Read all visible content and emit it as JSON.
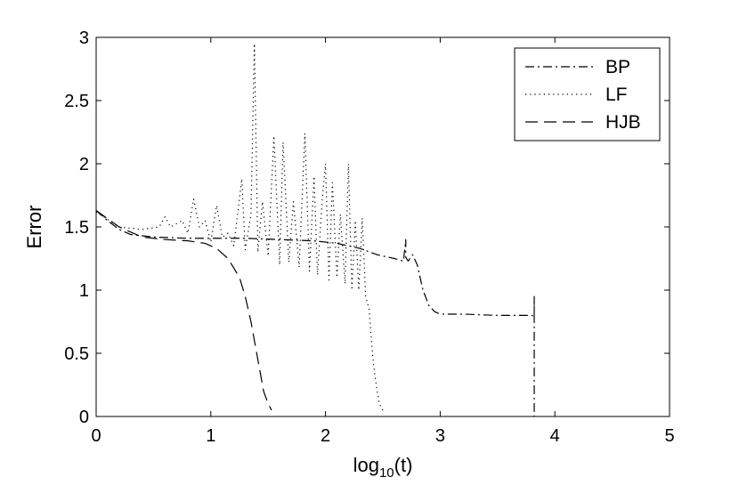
{
  "chart_data": {
    "type": "line",
    "xlabel": "log",
    "xlabel_sub": "10",
    "xlabel_tail": "(t)",
    "ylabel": "Error",
    "xlim": [
      0,
      5
    ],
    "ylim": [
      0,
      3
    ],
    "xticks": [
      0,
      1,
      2,
      3,
      4,
      5
    ],
    "yticks": [
      0,
      0.5,
      1,
      1.5,
      2,
      2.5,
      3
    ],
    "xtick_labels": [
      "0",
      "1",
      "2",
      "3",
      "4",
      "5"
    ],
    "ytick_labels": [
      "0",
      "0.5",
      "1",
      "1.5",
      "2",
      "2.5",
      "3"
    ],
    "grid": false,
    "legend_position": "top-right",
    "series": [
      {
        "name": "BP",
        "style": "dashdot",
        "x": [
          0,
          0.1,
          0.2,
          0.3,
          0.5,
          0.8,
          1.0,
          1.3,
          1.6,
          1.9,
          2.1,
          2.3,
          2.45,
          2.6,
          2.68,
          2.7,
          2.7,
          2.72,
          2.76,
          2.8,
          2.85,
          2.9,
          2.95,
          3.0,
          3.2,
          3.5,
          3.7,
          3.8,
          3.82,
          3.82,
          3.82,
          3.82
        ],
        "y": [
          1.63,
          1.55,
          1.48,
          1.44,
          1.42,
          1.41,
          1.41,
          1.41,
          1.4,
          1.39,
          1.37,
          1.33,
          1.28,
          1.25,
          1.23,
          1.4,
          1.26,
          1.23,
          1.28,
          1.2,
          1.0,
          0.88,
          0.83,
          0.81,
          0.81,
          0.8,
          0.8,
          0.8,
          0.79,
          0.95,
          0.25,
          0.0
        ]
      },
      {
        "name": "LF",
        "style": "dotted",
        "x": [
          0,
          0.2,
          0.4,
          0.55,
          0.6,
          0.65,
          0.75,
          0.8,
          0.85,
          0.9,
          0.95,
          1.0,
          1.05,
          1.1,
          1.15,
          1.2,
          1.27,
          1.3,
          1.35,
          1.38,
          1.41,
          1.45,
          1.5,
          1.55,
          1.6,
          1.63,
          1.68,
          1.72,
          1.77,
          1.82,
          1.86,
          1.9,
          1.93,
          1.97,
          2.0,
          2.03,
          2.06,
          2.1,
          2.13,
          2.17,
          2.2,
          2.23,
          2.26,
          2.29,
          2.32,
          2.35,
          2.38,
          2.4,
          2.42,
          2.45,
          2.47,
          2.5
        ],
        "y": [
          1.62,
          1.5,
          1.48,
          1.5,
          1.58,
          1.5,
          1.55,
          1.45,
          1.72,
          1.5,
          1.55,
          1.38,
          1.67,
          1.42,
          1.45,
          1.35,
          1.88,
          1.32,
          1.6,
          2.95,
          1.3,
          1.7,
          1.27,
          2.22,
          1.2,
          2.17,
          1.22,
          1.7,
          1.18,
          2.24,
          1.15,
          1.9,
          1.12,
          1.7,
          2.0,
          1.08,
          1.85,
          1.1,
          1.6,
          1.05,
          2.0,
          1.0,
          1.55,
          1.0,
          1.57,
          0.95,
          0.85,
          0.6,
          0.4,
          0.2,
          0.1,
          0.05
        ]
      },
      {
        "name": "HJB",
        "style": "dashed",
        "x": [
          0,
          0.2,
          0.4,
          0.6,
          0.8,
          0.95,
          1.05,
          1.15,
          1.25,
          1.3,
          1.35,
          1.38,
          1.42,
          1.46,
          1.5,
          1.53
        ],
        "y": [
          1.63,
          1.5,
          1.42,
          1.4,
          1.39,
          1.37,
          1.33,
          1.25,
          1.1,
          0.95,
          0.75,
          0.6,
          0.4,
          0.2,
          0.1,
          0.05
        ]
      }
    ]
  }
}
